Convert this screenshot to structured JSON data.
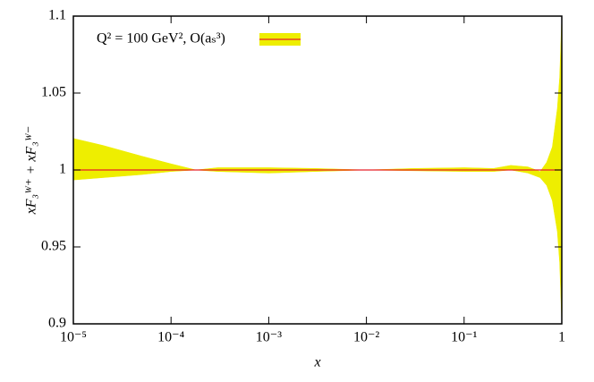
{
  "chart_data": {
    "type": "band",
    "xlabel": "x",
    "ylabel": "xF₃ᵂ⁺ + xF₃ᵂ⁻",
    "xscale": "log",
    "xlim": [
      1e-05,
      1
    ],
    "ylim": [
      0.9,
      1.1
    ],
    "xticks": [
      {
        "value": 1e-05,
        "label": "10⁻⁵"
      },
      {
        "value": 0.0001,
        "label": "10⁻⁴"
      },
      {
        "value": 0.001,
        "label": "10⁻³"
      },
      {
        "value": 0.01,
        "label": "10⁻²"
      },
      {
        "value": 0.1,
        "label": "10⁻¹"
      },
      1
    ],
    "yticks": [
      0.9,
      0.95,
      1,
      1.05,
      1.1
    ],
    "legend": "top-left",
    "x": [
      1e-05,
      2e-05,
      5e-05,
      0.0001,
      0.00018,
      0.0003,
      0.001,
      0.003,
      0.01,
      0.03,
      0.1,
      0.2,
      0.3,
      0.45,
      0.6,
      0.7,
      0.8,
      0.9,
      0.95,
      1
    ],
    "series": [
      {
        "name": "Q² = 100 GeV², O(aₛ³)",
        "color": "#e8202a",
        "band_color": "#eeee00",
        "values": [
          1,
          1,
          1,
          1,
          1,
          1,
          1,
          1,
          1,
          1,
          1,
          1,
          1,
          1,
          1,
          1,
          1,
          1,
          1,
          1
        ],
        "upper": [
          1.0205,
          1.016,
          1.009,
          1.004,
          1.0,
          1.0015,
          1.0015,
          1.001,
          1.0,
          1.001,
          1.0015,
          1.001,
          1.003,
          1.002,
          0.999,
          1.005,
          1.015,
          1.04,
          1.06,
          1.1
        ],
        "lower": [
          0.9935,
          0.995,
          0.997,
          0.999,
          1.0,
          0.999,
          0.998,
          0.999,
          1.0,
          0.9995,
          0.999,
          0.999,
          1.0,
          0.998,
          0.995,
          0.99,
          0.98,
          0.96,
          0.94,
          0.9
        ]
      }
    ]
  }
}
